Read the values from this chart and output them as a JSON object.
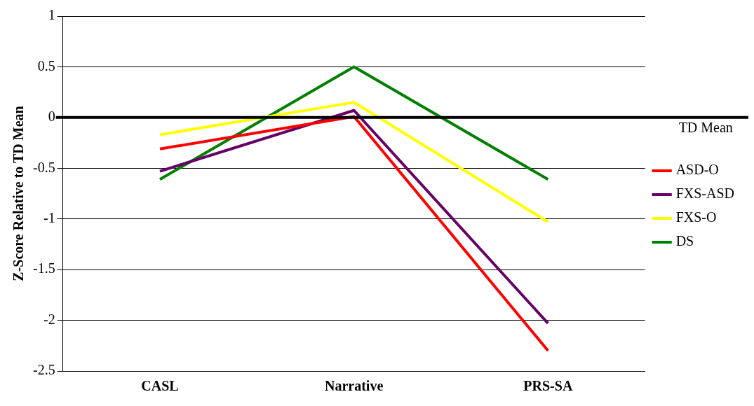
{
  "chart_data": {
    "type": "line",
    "ylabel": "Z-Score Relative to TD Mean",
    "categories": [
      "CASL",
      "Narrative",
      "PRS-SA"
    ],
    "series": [
      {
        "name": "ASD-O",
        "color": "#ff0000",
        "values": [
          -0.31,
          0.01,
          -2.3
        ]
      },
      {
        "name": "FXS-ASD",
        "color": "#660066",
        "values": [
          -0.53,
          0.07,
          -2.03
        ]
      },
      {
        "name": "FXS-O",
        "color": "#ffff00",
        "values": [
          -0.17,
          0.15,
          -1.03
        ]
      },
      {
        "name": "DS",
        "color": "#008000",
        "values": [
          -0.61,
          0.5,
          -0.61
        ]
      }
    ],
    "ylim": [
      -2.5,
      1
    ],
    "yticks": [
      -2.5,
      -2,
      -1.5,
      -1,
      -0.5,
      0,
      0.5,
      1
    ],
    "grid": "y",
    "legend": "right",
    "marker": "none",
    "line_style": "solid",
    "ref_lines": [
      {
        "axis": "y",
        "value": 0,
        "label": "TD Mean",
        "color": "#000000"
      }
    ]
  }
}
